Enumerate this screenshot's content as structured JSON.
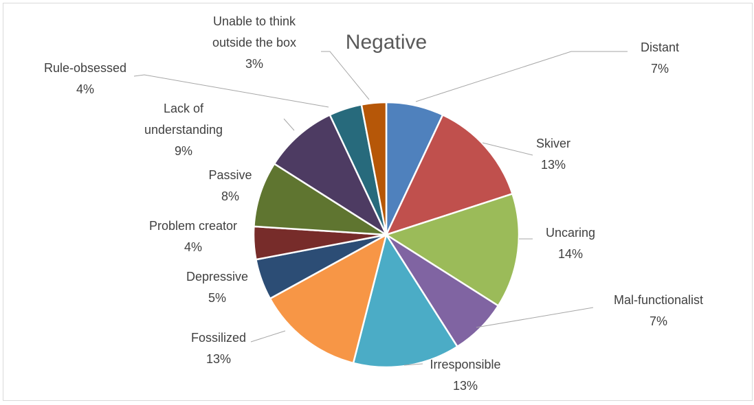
{
  "chart_data": {
    "type": "pie",
    "title": "Negative",
    "start_angle_deg": 0,
    "direction": "clockwise",
    "slices": [
      {
        "label": "Distant",
        "value": 7,
        "pct_label": "7%",
        "color": "#4F81BD"
      },
      {
        "label": "Skiver",
        "value": 13,
        "pct_label": "13%",
        "color": "#C0504D"
      },
      {
        "label": "Uncaring",
        "value": 14,
        "pct_label": "14%",
        "color": "#9BBB59"
      },
      {
        "label": "Mal-functionalist",
        "value": 7,
        "pct_label": "7%",
        "color": "#8064A2"
      },
      {
        "label": "Irresponsible",
        "value": 13,
        "pct_label": "13%",
        "color": "#4BACC6"
      },
      {
        "label": "Fossilized",
        "value": 13,
        "pct_label": "13%",
        "color": "#F79646"
      },
      {
        "label": "Depressive",
        "value": 5,
        "pct_label": "5%",
        "color": "#2C4D75"
      },
      {
        "label": "Problem creator",
        "value": 4,
        "pct_label": "4%",
        "color": "#772C2A"
      },
      {
        "label": "Passive",
        "value": 8,
        "pct_label": "8%",
        "color": "#5F7530"
      },
      {
        "label": "Lack of understanding",
        "value": 9,
        "pct_label": "9%",
        "color": "#4D3B62"
      },
      {
        "label": "Rule-obsessed",
        "value": 4,
        "pct_label": "4%",
        "color": "#276A7C"
      },
      {
        "label": "Unable to think outside the box",
        "value": 3,
        "pct_label": "3%",
        "color": "#B65708"
      }
    ],
    "legend": "none",
    "data_labels": "outside with leader lines"
  }
}
